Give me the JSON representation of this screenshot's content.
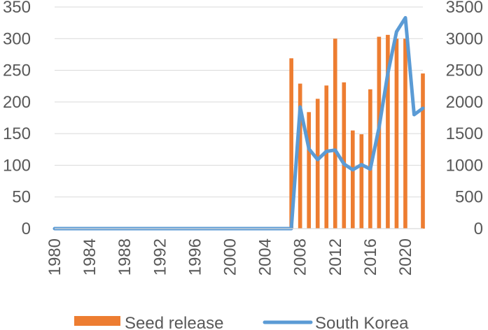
{
  "chart_data": {
    "type": "bar",
    "title": "",
    "xlabel": "",
    "ylabel": "",
    "x": [
      1980,
      1981,
      1982,
      1983,
      1984,
      1985,
      1986,
      1987,
      1988,
      1989,
      1990,
      1991,
      1992,
      1993,
      1994,
      1995,
      1996,
      1997,
      1998,
      1999,
      2000,
      2001,
      2002,
      2003,
      2004,
      2005,
      2006,
      2007,
      2008,
      2009,
      2010,
      2011,
      2012,
      2013,
      2014,
      2015,
      2016,
      2017,
      2018,
      2019,
      2020,
      2021,
      2022
    ],
    "x_tick_labels": [
      "1980",
      "1984",
      "1988",
      "1992",
      "1996",
      "2000",
      "2004",
      "2008",
      "2012",
      "2016",
      "2020"
    ],
    "left_axis": {
      "ylim": [
        0,
        350
      ],
      "ticks": [
        "0",
        "50",
        "100",
        "150",
        "200",
        "250",
        "300",
        "350"
      ]
    },
    "right_axis": {
      "ylim": [
        0,
        3500
      ],
      "ticks": [
        "0",
        "500",
        "1000",
        "1500",
        "2000",
        "2500",
        "3000",
        "3500"
      ]
    },
    "grid": true,
    "legend_position": "bottom",
    "series": [
      {
        "name": "Seed release",
        "type": "bar",
        "axis": "left",
        "color": "#ED7D31",
        "values": [
          0,
          0,
          0,
          0,
          0,
          0,
          0,
          0,
          0,
          0,
          0,
          0,
          0,
          0,
          0,
          0,
          0,
          0,
          0,
          0,
          0,
          0,
          0,
          0,
          0,
          0,
          0,
          269,
          229,
          184,
          205,
          226,
          300,
          231,
          155,
          149,
          220,
          303,
          306,
          300,
          300,
          0,
          245
        ]
      },
      {
        "name": "South Korea",
        "type": "line",
        "axis": "right",
        "color": "#5B9BD5",
        "values": [
          0,
          0,
          0,
          0,
          0,
          0,
          0,
          0,
          0,
          0,
          0,
          0,
          0,
          0,
          0,
          0,
          0,
          0,
          0,
          0,
          0,
          0,
          0,
          0,
          0,
          0,
          0,
          0,
          1920,
          1260,
          1090,
          1220,
          1240,
          1020,
          930,
          1010,
          940,
          1600,
          2450,
          3110,
          3330,
          1800,
          1900
        ]
      }
    ]
  }
}
